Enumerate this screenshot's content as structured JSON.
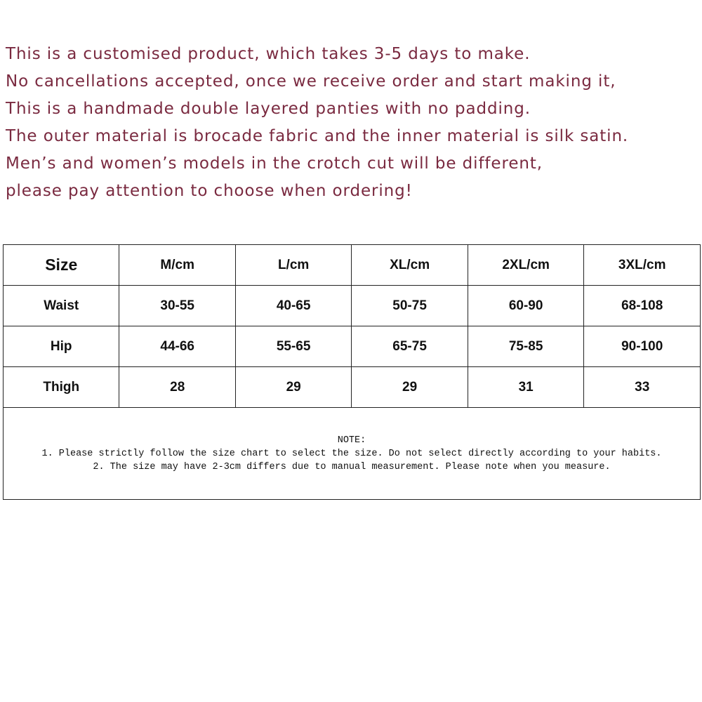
{
  "intro_lines": [
    "This is a customised product, which takes 3-5 days to make.",
    "No cancellations accepted, once we receive order and start making it,",
    "This is a handmade double layered panties with no padding.",
    "The outer material is brocade fabric and the inner material is silk satin.",
    "Men’s and women’s models in the crotch cut will be different,",
    "please pay attention to choose when ordering!"
  ],
  "text_color": "#7a2a40",
  "size_table": {
    "headers": [
      "Size",
      "M/cm",
      "L/cm",
      "XL/cm",
      "2XL/cm",
      "3XL/cm"
    ],
    "rows": [
      [
        "Waist",
        "30-55",
        "40-65",
        "50-75",
        "60-90",
        "68-108"
      ],
      [
        "Hip",
        "44-66",
        "55-65",
        "65-75",
        "75-85",
        "90-100"
      ],
      [
        "Thigh",
        "28",
        "29",
        "29",
        "31",
        "33"
      ]
    ]
  },
  "note": {
    "title": "NOTE:",
    "lines": [
      "1. Please strictly follow the size chart to select the size. Do not select directly according to your habits.",
      "2. The size may have 2-3cm differs due to manual measurement. Please note when you measure."
    ]
  }
}
